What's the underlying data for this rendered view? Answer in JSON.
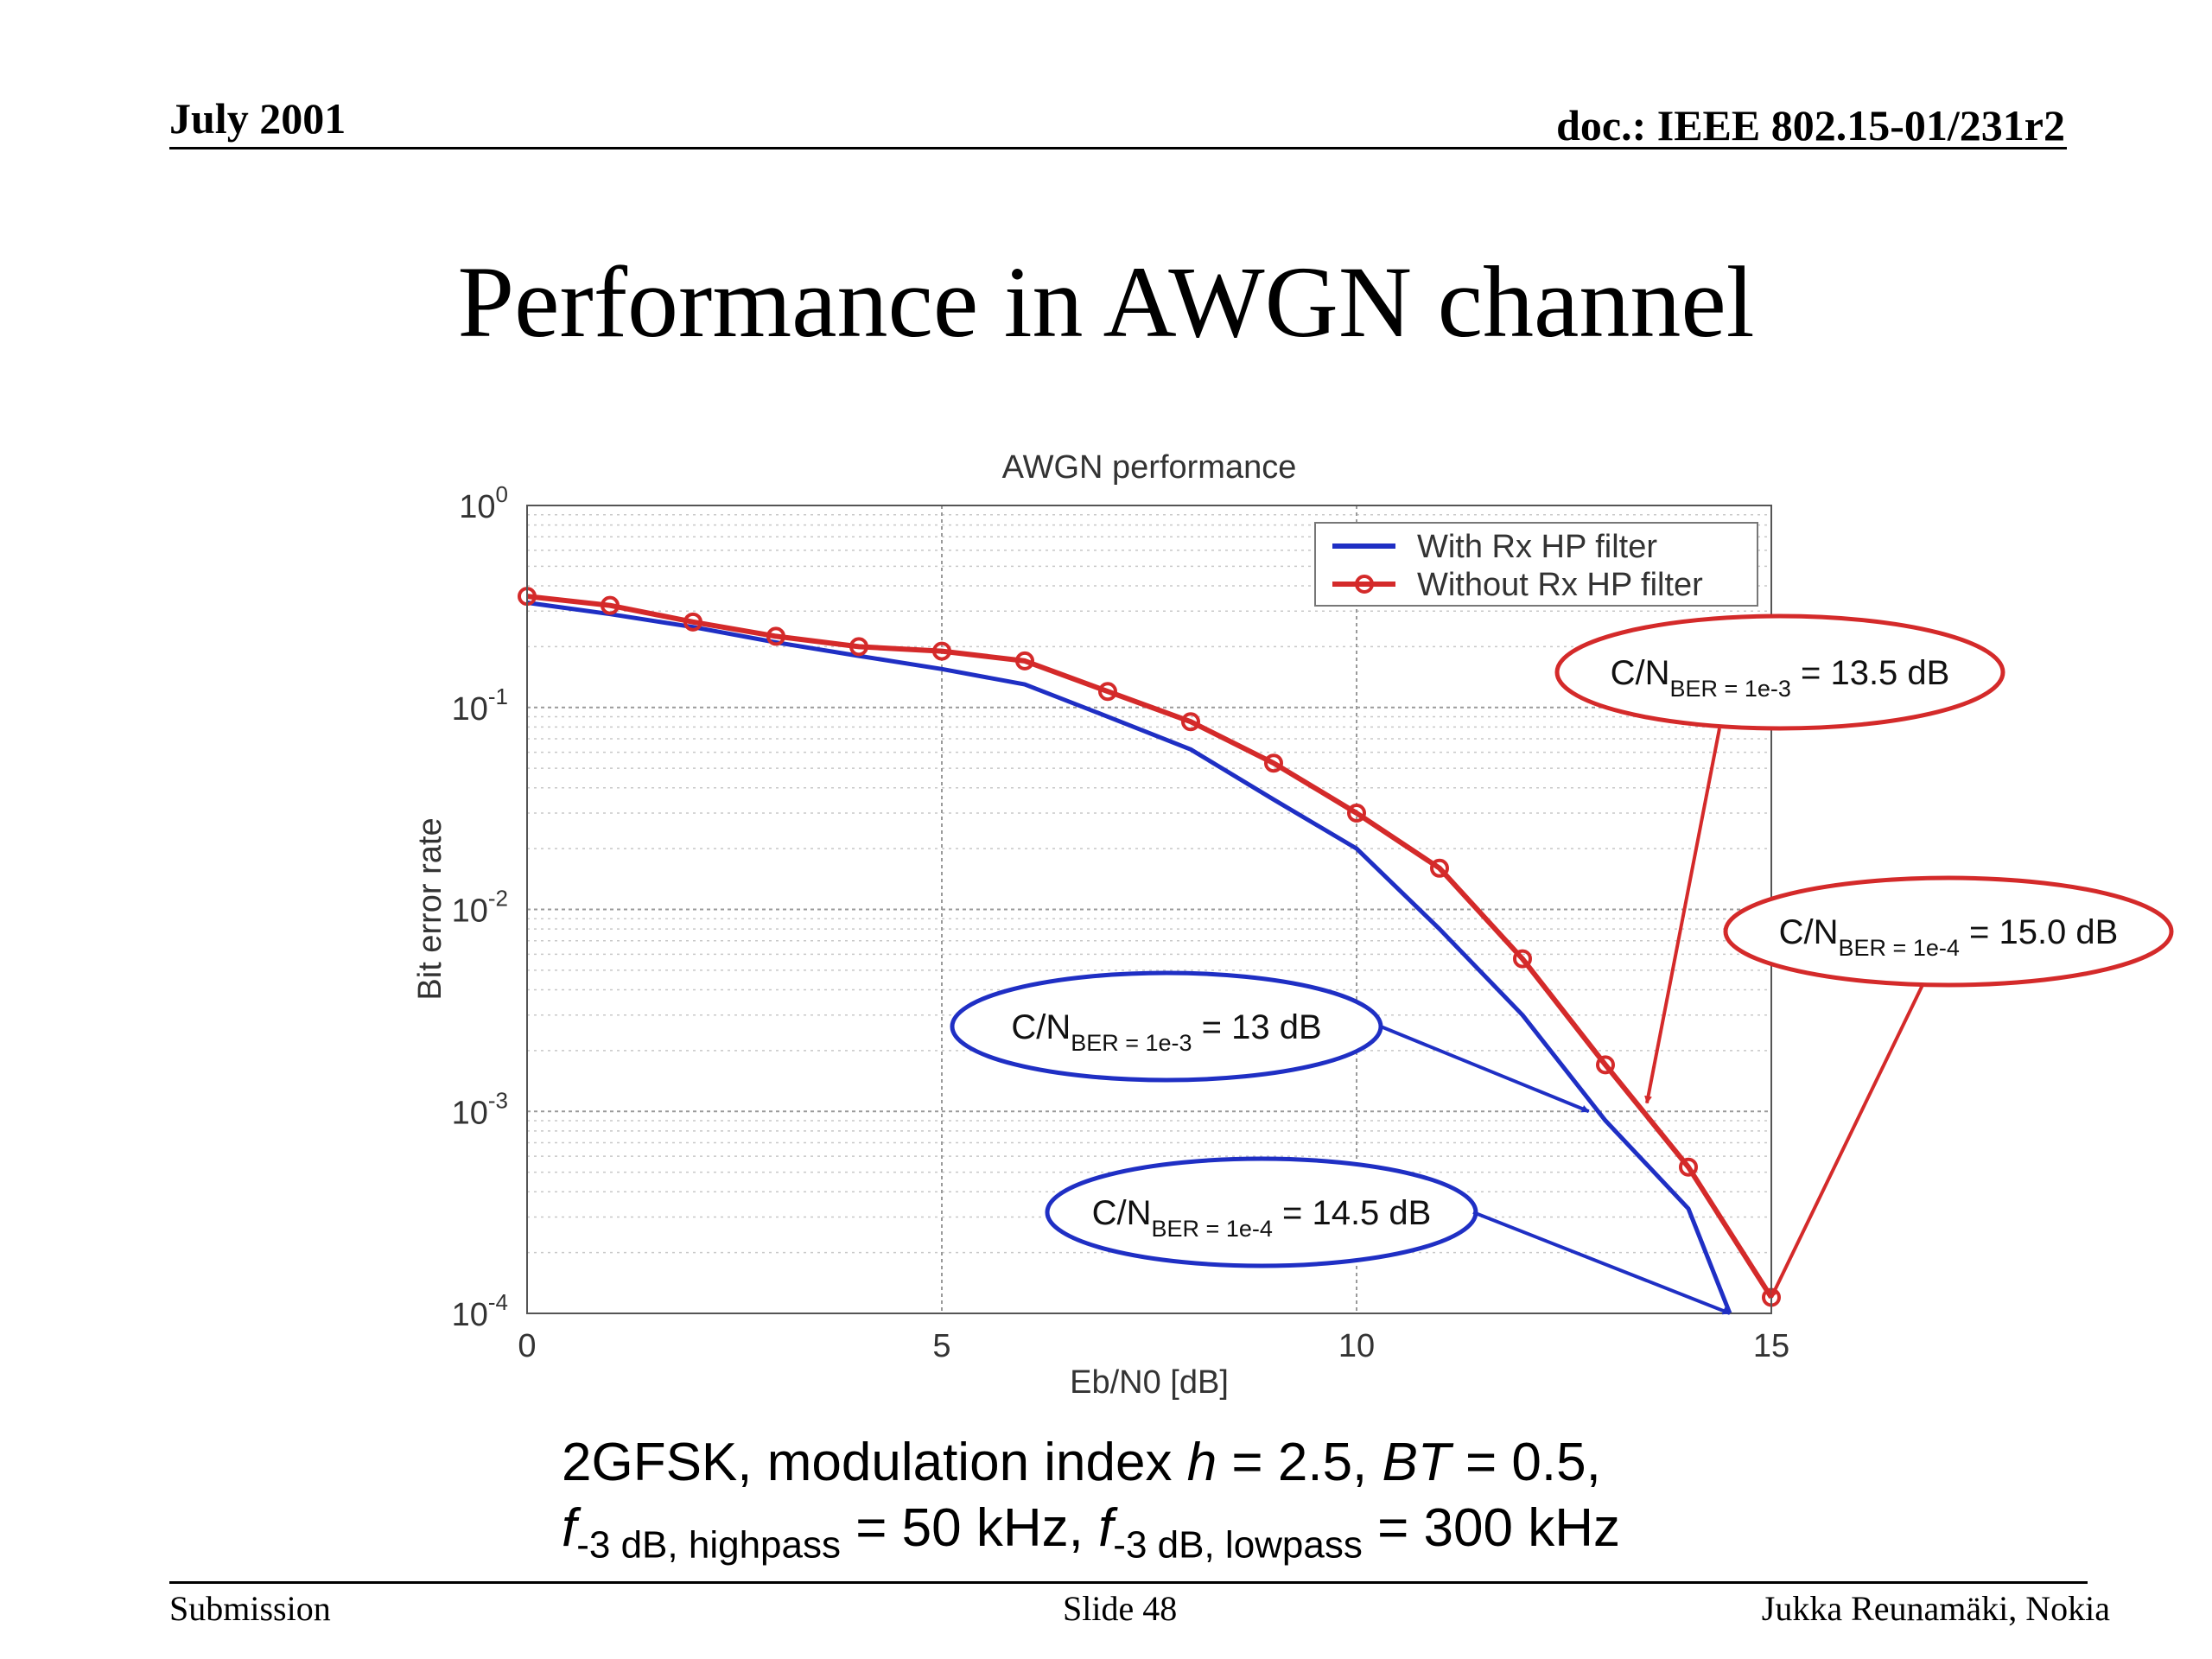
{
  "header": {
    "date": "July 2001",
    "doc": "doc.: IEEE 802.15-01/231r2"
  },
  "slide_title": "Performance in AWGN channel",
  "chart_data": {
    "type": "line",
    "title": "AWGN performance",
    "xlabel": "Eb/N0 [dB]",
    "ylabel": "Bit error rate",
    "xlim": [
      0,
      15
    ],
    "ylim": [
      0.0001,
      1
    ],
    "yscale": "log",
    "grid": true,
    "legend_position": "top-right",
    "x_ticks": [
      "0",
      "5",
      "10",
      "15"
    ],
    "y_ticks": [
      {
        "base": "10",
        "exp": "0"
      },
      {
        "base": "10",
        "exp": "-1"
      },
      {
        "base": "10",
        "exp": "-2"
      },
      {
        "base": "10",
        "exp": "-3"
      },
      {
        "base": "10",
        "exp": "-4"
      }
    ],
    "series": [
      {
        "name": "With Rx HP filter",
        "color": "#1f2fc4",
        "marker": "none",
        "x": [
          0,
          1,
          2,
          3,
          4,
          5,
          6,
          7,
          8,
          9,
          10,
          11,
          12,
          13,
          14,
          14.5
        ],
        "y": [
          0.33,
          0.29,
          0.25,
          0.21,
          0.18,
          0.155,
          0.13,
          0.09,
          0.062,
          0.035,
          0.02,
          0.008,
          0.003,
          0.0009,
          0.00033,
          0.0001
        ]
      },
      {
        "name": "Without Rx HP filter",
        "color": "#d42a2a",
        "marker": "circle",
        "x": [
          0,
          1,
          2,
          3,
          4,
          5,
          6,
          7,
          8,
          9,
          10,
          11,
          12,
          13,
          14,
          15
        ],
        "y": [
          0.355,
          0.32,
          0.265,
          0.225,
          0.2,
          0.19,
          0.17,
          0.12,
          0.085,
          0.053,
          0.03,
          0.016,
          0.0057,
          0.0017,
          0.00053,
          0.00012
        ]
      }
    ],
    "annotations": [
      {
        "id": "red-1e3",
        "color": "#d42a2a",
        "lhs": "C/N",
        "sub": "BER = 1e-3",
        "rhs": "= 13.5 dB",
        "target_x": 13.5,
        "target_y": 0.0011
      },
      {
        "id": "red-1e4",
        "color": "#d42a2a",
        "lhs": "C/N",
        "sub": "BER = 1e-4",
        "rhs": "= 15.0 dB",
        "target_x": 15,
        "target_y": 0.00012
      },
      {
        "id": "blue-1e3",
        "color": "#1f2fc4",
        "lhs": "C/N",
        "sub": "BER = 1e-3",
        "rhs": "= 13 dB",
        "target_x": 12.8,
        "target_y": 0.001
      },
      {
        "id": "blue-1e4",
        "color": "#1f2fc4",
        "lhs": "C/N",
        "sub": "BER = 1e-4",
        "rhs": "= 14.5 dB",
        "target_x": 14.5,
        "target_y": 0.0001
      }
    ]
  },
  "caption": {
    "line1": {
      "a": "2GFSK, modulation index ",
      "h": "h",
      "b": " = 2.5, ",
      "bt": "BT",
      "c": " = 0.5,"
    },
    "line2": {
      "f1": "f",
      "sub1": "-3 dB, highpass",
      "mid": " = 50 kHz, ",
      "f2": "f",
      "sub2": "-3 dB, lowpass",
      "end": " = 300 kHz"
    }
  },
  "footer": {
    "left": "Submission",
    "center": "Slide 48",
    "right": "Jukka Reunamäki, Nokia"
  }
}
